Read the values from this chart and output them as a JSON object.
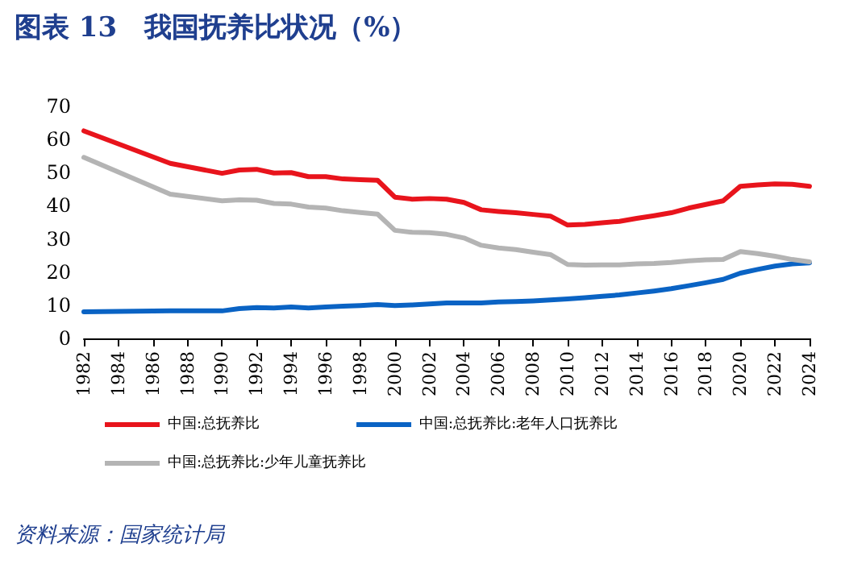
{
  "chart_data": {
    "type": "line",
    "title": "图表 13　我国抚养比状况（%）",
    "annotations": [
      "资料来源：国家统计局"
    ],
    "x": [
      1982,
      1987,
      1990,
      1991,
      1992,
      1993,
      1994,
      1995,
      1996,
      1997,
      1998,
      1999,
      2000,
      2001,
      2002,
      2003,
      2004,
      2005,
      2006,
      2007,
      2008,
      2009,
      2010,
      2011,
      2012,
      2013,
      2014,
      2015,
      2016,
      2017,
      2018,
      2019,
      2020,
      2021,
      2022,
      2023,
      2024
    ],
    "series": [
      {
        "name": "中国:总抚养比",
        "color": "#e8141c",
        "values": [
          62.6,
          52.8,
          49.8,
          50.8,
          51.0,
          49.9,
          50.0,
          48.8,
          48.8,
          48.1,
          47.9,
          47.7,
          42.6,
          42.0,
          42.2,
          42.0,
          41.0,
          38.8,
          38.3,
          37.9,
          37.4,
          36.9,
          34.2,
          34.4,
          34.9,
          35.3,
          36.2,
          37.0,
          37.9,
          39.3,
          40.4,
          41.5,
          45.9,
          46.3,
          46.6,
          46.5,
          45.9
        ]
      },
      {
        "name": "中国:总抚养比:老年人口抚养比",
        "color": "#0a63c4",
        "values": [
          8.0,
          8.3,
          8.3,
          9.0,
          9.3,
          9.2,
          9.5,
          9.2,
          9.5,
          9.7,
          9.9,
          10.2,
          9.9,
          10.1,
          10.4,
          10.7,
          10.7,
          10.7,
          11.0,
          11.1,
          11.3,
          11.6,
          11.9,
          12.3,
          12.7,
          13.1,
          13.7,
          14.3,
          15.0,
          15.9,
          16.8,
          17.8,
          19.7,
          20.8,
          21.8,
          22.5,
          22.8
        ]
      },
      {
        "name": "中国:总抚养比:少年儿童抚养比",
        "color": "#b4b4b4",
        "values": [
          54.6,
          43.5,
          41.5,
          41.8,
          41.7,
          40.7,
          40.5,
          39.6,
          39.3,
          38.5,
          38.0,
          37.5,
          32.6,
          32.0,
          31.9,
          31.4,
          30.3,
          28.1,
          27.3,
          26.8,
          26.0,
          25.3,
          22.3,
          22.1,
          22.2,
          22.2,
          22.5,
          22.6,
          22.9,
          23.4,
          23.7,
          23.8,
          26.2,
          25.6,
          24.8,
          23.8,
          23.1
        ]
      }
    ],
    "xlim": [
      1982,
      2024
    ],
    "xticks": [
      1982,
      1984,
      1986,
      1988,
      1990,
      1992,
      1994,
      1996,
      1998,
      2000,
      2002,
      2004,
      2006,
      2008,
      2010,
      2012,
      2014,
      2016,
      2018,
      2020,
      2022,
      2024
    ],
    "ylim": [
      0,
      70
    ],
    "yticks": [
      0,
      10,
      20,
      30,
      40,
      50,
      60,
      70
    ],
    "grid": false,
    "legend": "bottom",
    "marker": "none",
    "line_style": "solid"
  }
}
